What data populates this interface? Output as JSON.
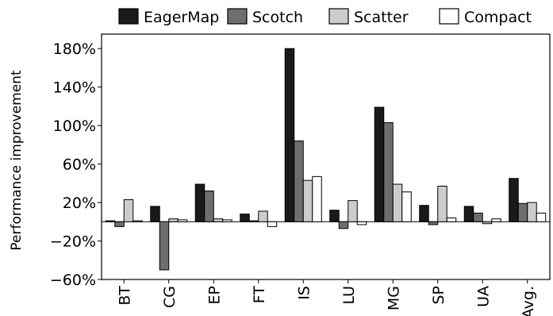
{
  "chart_data": {
    "type": "bar",
    "ylabel": "Performance improvement",
    "xlabel": "",
    "ylim": [
      -60,
      195
    ],
    "yticks": [
      -60,
      -20,
      20,
      60,
      100,
      140,
      180
    ],
    "ytick_labels": [
      "−60%",
      "−20%",
      "20%",
      "60%",
      "100%",
      "140%",
      "180%"
    ],
    "categories": [
      "BT",
      "CG",
      "EP",
      "FT",
      "IS",
      "LU",
      "MG",
      "SP",
      "UA",
      "Avg."
    ],
    "legend_position": "top",
    "grid": false,
    "series": [
      {
        "name": "EagerMap",
        "color": "#1a1a1a",
        "values": [
          1,
          16,
          39,
          8,
          180,
          12,
          119,
          17,
          16,
          45
        ]
      },
      {
        "name": "Scotch",
        "color": "#6e6e6e",
        "values": [
          -5,
          -50,
          32,
          1,
          84,
          -7,
          103,
          -3,
          9,
          19
        ]
      },
      {
        "name": "Scatter",
        "color": "#cccccc",
        "values": [
          23,
          3,
          3,
          11,
          43,
          22,
          39,
          37,
          -2,
          20
        ]
      },
      {
        "name": "Compact",
        "color": "#ffffff",
        "values": [
          1,
          2,
          2,
          -5,
          47,
          -3,
          31,
          4,
          3,
          9
        ]
      }
    ]
  }
}
